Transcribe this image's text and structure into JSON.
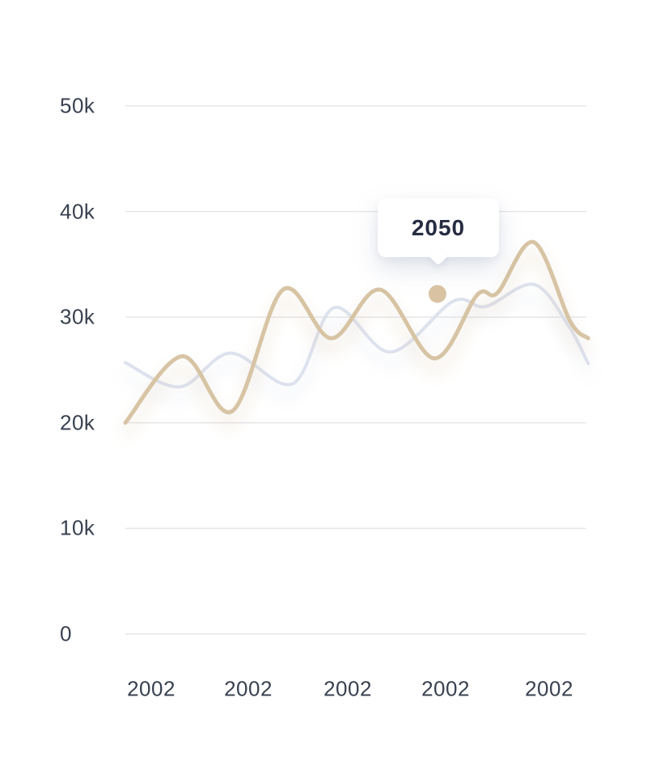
{
  "chart_data": {
    "type": "line",
    "title": "",
    "x_axis": {
      "tick_labels": [
        "2002",
        "2002",
        "2002",
        "2002",
        "2002"
      ]
    },
    "y_axis": {
      "tick_values": [
        0,
        10,
        20,
        30,
        40,
        50
      ],
      "tick_labels": [
        "0",
        "10k",
        "20k",
        "30k",
        "40k",
        "50k"
      ],
      "min": 0,
      "max": 50,
      "unit": "thousands"
    },
    "grid": "horizontal",
    "legend": "none",
    "series": [
      {
        "name": "muted-series",
        "color": "#dde2ee",
        "stroke_width": 4,
        "x_unit": "plot-fraction",
        "y_unit": "thousands",
        "shadow": "rgba(196,205,224,0.45)",
        "points": [
          [
            0.0,
            25.7
          ],
          [
            0.118,
            23.4
          ],
          [
            0.228,
            26.6
          ],
          [
            0.363,
            23.7
          ],
          [
            0.453,
            30.9
          ],
          [
            0.575,
            26.7
          ],
          [
            0.711,
            31.5
          ],
          [
            0.781,
            31.0
          ],
          [
            0.886,
            33.1
          ],
          [
            0.961,
            29.2
          ],
          [
            1.004,
            25.6
          ]
        ]
      },
      {
        "name": "highlight-series",
        "color": "#d7c4a4",
        "stroke_width": 5,
        "x_unit": "plot-fraction",
        "y_unit": "thousands",
        "shadow": "rgba(206,180,140,0.45)",
        "points": [
          [
            0.0,
            20.0
          ],
          [
            0.123,
            26.3
          ],
          [
            0.232,
            21.1
          ],
          [
            0.342,
            32.6
          ],
          [
            0.447,
            28.0
          ],
          [
            0.553,
            32.6
          ],
          [
            0.67,
            26.1
          ],
          [
            0.763,
            32.1
          ],
          [
            0.807,
            32.3
          ],
          [
            0.886,
            37.1
          ],
          [
            0.965,
            29.6
          ],
          [
            1.004,
            28.0
          ]
        ]
      }
    ],
    "marker": {
      "series": "highlight-series",
      "x": 0.677,
      "value": 32.2,
      "radius": 11,
      "color": "#d9c3a2"
    },
    "tooltip": {
      "label": "2050",
      "anchor_x": 0.677
    }
  },
  "colors": {
    "background": "#ffffff",
    "gridline": "#e5e5e9",
    "axis_text": "#394150",
    "tooltip_text": "#262c41"
  }
}
